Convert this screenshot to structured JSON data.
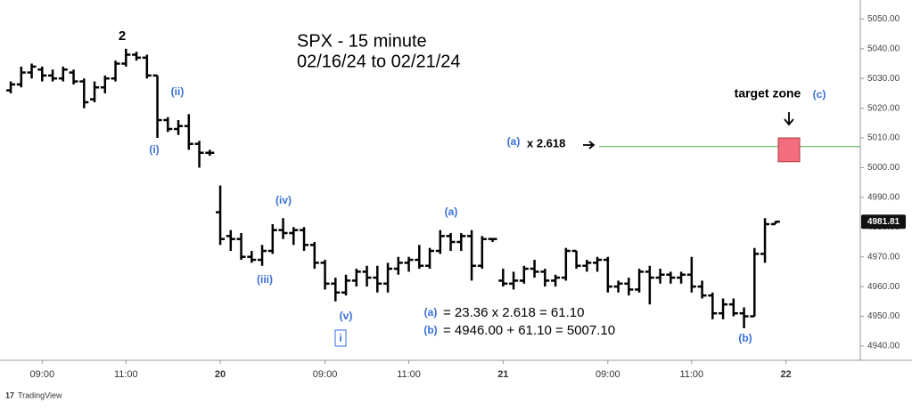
{
  "chart_data": {
    "type": "ohlc",
    "title": "SPX - 15 minute",
    "subtitle": "02/16/24 to 02/21/24",
    "color": "#000000",
    "ylim": [
      4935.2,
      5056.4
    ],
    "yticks": [
      {
        "value": 4940,
        "label": "4940.00"
      },
      {
        "value": 4950,
        "label": "4950.00"
      },
      {
        "value": 4960,
        "label": "4960.00"
      },
      {
        "value": 4970,
        "label": "4970.00"
      },
      {
        "value": 4980,
        "label": "4980.00"
      },
      {
        "value": 4990,
        "label": "4990.00"
      },
      {
        "value": 5000,
        "label": "5000.00"
      },
      {
        "value": 5010,
        "label": "5010.00"
      },
      {
        "value": 5020,
        "label": "5020.00"
      },
      {
        "value": 5030,
        "label": "5030.00"
      },
      {
        "value": 5040,
        "label": "5040.00"
      },
      {
        "value": 5050,
        "label": "5050.00"
      }
    ],
    "xlim": [
      -0.6,
      81.1
    ],
    "xticks": [
      {
        "value": 3,
        "label": "09:00"
      },
      {
        "value": 11,
        "label": "11:00"
      },
      {
        "value": 20,
        "label": "20"
      },
      {
        "value": 30,
        "label": "09:00"
      },
      {
        "value": 38,
        "label": "11:00"
      },
      {
        "value": 47,
        "label": "21"
      },
      {
        "value": 57,
        "label": "09:00"
      },
      {
        "value": 65,
        "label": "11:00"
      },
      {
        "value": 74,
        "label": "22"
      }
    ],
    "open": [
      5026,
      5028,
      5032,
      5033,
      5031,
      5030,
      5032,
      5029,
      5023,
      5027,
      5030,
      5035,
      5038,
      5037,
      5031,
      5016,
      5013,
      5014,
      5008,
      5005,
      4985,
      4977,
      4976,
      4970,
      4969,
      4972,
      4979,
      4978,
      4979,
      4974,
      4968,
      4961,
      4958,
      4962,
      4965,
      4963,
      4961,
      4966,
      4968,
      4969,
      4967,
      4972,
      4977,
      4975,
      4977,
      4967,
      4976,
      4962,
      4961,
      4962,
      4966,
      4965,
      4962,
      4963,
      4972,
      4967,
      4968,
      4969,
      4960,
      4961,
      4959,
      4965,
      4963,
      4964,
      4963,
      4964,
      4960,
      4957,
      4951,
      4954,
      4951,
      4950,
      4971,
      4981
    ],
    "high": [
      5029,
      5034,
      5035,
      5034,
      5033,
      5034,
      5033,
      5030,
      5029,
      5031,
      5036,
      5040,
      5039,
      5038,
      5031,
      5017,
      5016,
      5018,
      5009,
      5006,
      4994,
      4979,
      4978,
      4972,
      4974,
      4981,
      4983,
      4980,
      4980,
      4975,
      4969,
      4963,
      4964,
      4966,
      4967,
      4967,
      4968,
      4970,
      4970,
      4974,
      4973,
      4979,
      4978,
      4978,
      4979,
      4977,
      4976,
      4966,
      4965,
      4967,
      4969,
      4966,
      4964,
      4973,
      4972,
      4969,
      4970,
      4970,
      4962,
      4963,
      4966,
      4967,
      4966,
      4965,
      4965,
      4970,
      4962,
      4958,
      4956,
      4956,
      4953,
      4973,
      4983,
      4982
    ],
    "low": [
      5025,
      5027,
      5030,
      5029,
      5029,
      5029,
      5028,
      5020,
      5022,
      5025,
      5029,
      5034,
      5036,
      5030,
      5010,
      5012,
      5011,
      5006,
      5000,
      5004,
      4974,
      4972,
      4969,
      4968,
      4967,
      4971,
      4976,
      4974,
      4972,
      4966,
      4959,
      4955,
      4957,
      4960,
      4960,
      4958,
      4958,
      4964,
      4965,
      4966,
      4966,
      4971,
      4972,
      4972,
      4962,
      4966,
      4975,
      4960,
      4959,
      4961,
      4963,
      4960,
      4960,
      4962,
      4966,
      4965,
      4965,
      4958,
      4958,
      4957,
      4958,
      4954,
      4961,
      4961,
      4961,
      4958,
      4956,
      4949,
      4949,
      4950,
      4946,
      4950,
      4968,
      4981
    ],
    "close": [
      5028,
      5032,
      5034,
      5031,
      5030,
      5033,
      5029,
      5022,
      5027,
      5030,
      5035,
      5038,
      5037,
      5031,
      5016,
      5013,
      5014,
      5008,
      5005,
      5005,
      4976,
      4976,
      4970,
      4969,
      4972,
      4979,
      4978,
      4979,
      4974,
      4968,
      4961,
      4958,
      4962,
      4965,
      4963,
      4961,
      4966,
      4968,
      4969,
      4967,
      4972,
      4977,
      4975,
      4977,
      4967,
      4976,
      4976,
      4961,
      4962,
      4966,
      4965,
      4962,
      4963,
      4972,
      4967,
      4968,
      4969,
      4960,
      4961,
      4959,
      4965,
      4963,
      4964,
      4963,
      4964,
      4960,
      4957,
      4951,
      4954,
      4951,
      4950,
      4971,
      4981,
      4981.81
    ],
    "last_price": 4981.81,
    "target_line": {
      "value": 5007.1,
      "color": "#4caf50"
    },
    "target_zone": {
      "low": 5002,
      "high": 5010,
      "color": "#f26d7d"
    },
    "annotations": [
      {
        "text": "2",
        "color": "#000000"
      },
      {
        "text": "(ii)",
        "color": "#3a6fd8"
      },
      {
        "text": "(i)",
        "color": "#3a6fd8"
      },
      {
        "text": "(iv)",
        "color": "#3a6fd8"
      },
      {
        "text": "(iii)",
        "color": "#3a6fd8"
      },
      {
        "text": "(v)",
        "color": "#3a6fd8"
      },
      {
        "text": "i",
        "color": "#3a6fd8"
      },
      {
        "text": "(a)",
        "color": "#3a6fd8"
      },
      {
        "text": "(b)",
        "color": "#3a6fd8"
      },
      {
        "text": "(c)",
        "color": "#3a6fd8"
      },
      {
        "text": "target zone",
        "color": "#000000"
      },
      {
        "text": "(a)",
        "color": "#3a6fd8"
      },
      {
        "text": "x 2.618",
        "color": "#000000"
      },
      {
        "text": "(a)",
        "color": "#3a6fd8"
      },
      {
        "text": "= 23.36 x 2.618 = 61.10",
        "color": "#000000"
      },
      {
        "text": "(b)",
        "color": "#3a6fd8"
      },
      {
        "text": "= 4946.00 + 61.10 = 5007.10",
        "color": "#000000"
      }
    ],
    "source": "TradingView"
  }
}
